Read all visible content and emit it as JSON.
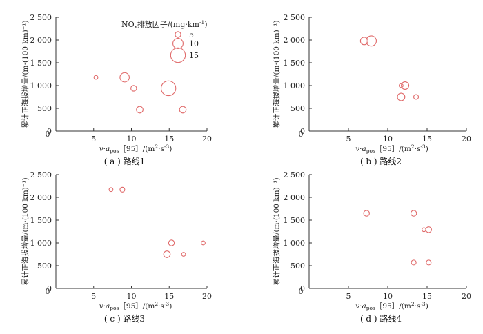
{
  "colors": {
    "marker": "#e06a6a",
    "axis": "#333333"
  },
  "legend": {
    "title": "NOx排放因子/(mg·km⁻¹)",
    "items": [
      {
        "label": "5",
        "size": 5
      },
      {
        "label": "10",
        "size": 10
      },
      {
        "label": "15",
        "size": 15
      }
    ]
  },
  "chart_data": [
    {
      "type": "scatter",
      "caption": "( a ) 路线1",
      "xlabel": "v·a_pos［95］/(m²·s⁻³)",
      "ylabel": "累计正海拔增量/(m·(100 km)⁻¹)",
      "xlim": [
        0,
        20
      ],
      "ylim": [
        0,
        2500
      ],
      "xticks": [
        0,
        5,
        10,
        15,
        20
      ],
      "yticks": [
        0,
        500,
        1000,
        1500,
        2000,
        2500
      ],
      "legend_position": "top-right",
      "points": [
        {
          "x": 5.3,
          "y": 1180,
          "size": 3
        },
        {
          "x": 9.1,
          "y": 1180,
          "size": 9
        },
        {
          "x": 10.3,
          "y": 940,
          "size": 5
        },
        {
          "x": 11.1,
          "y": 470,
          "size": 6
        },
        {
          "x": 14.9,
          "y": 940,
          "size": 15
        },
        {
          "x": 16.8,
          "y": 470,
          "size": 6
        }
      ]
    },
    {
      "type": "scatter",
      "caption": "( b ) 路线2",
      "xlabel": "v·a_pos［95］/(m²·s⁻³)",
      "ylabel": "累计正海拔增量/(m·(100 km)⁻¹)",
      "xlim": [
        0,
        20
      ],
      "ylim": [
        0,
        2500
      ],
      "xticks": [
        0,
        5,
        10,
        15,
        20
      ],
      "yticks": [
        0,
        500,
        1000,
        1500,
        2000,
        2500
      ],
      "points": [
        {
          "x": 7.0,
          "y": 1980,
          "size": 7
        },
        {
          "x": 7.9,
          "y": 1980,
          "size": 10
        },
        {
          "x": 11.7,
          "y": 1000,
          "size": 3
        },
        {
          "x": 12.2,
          "y": 1000,
          "size": 7
        },
        {
          "x": 11.7,
          "y": 750,
          "size": 7
        },
        {
          "x": 13.6,
          "y": 750,
          "size": 4
        }
      ]
    },
    {
      "type": "scatter",
      "caption": "( c ) 路线3",
      "xlabel": "v·a_pos［95］/(m²·s⁻³)",
      "ylabel": "累计正海拔增量/(m·(100 km)⁻¹)",
      "xlim": [
        0,
        20
      ],
      "ylim": [
        0,
        2500
      ],
      "xticks": [
        0,
        5,
        10,
        15,
        20
      ],
      "yticks": [
        0,
        500,
        1000,
        1500,
        2000,
        2500
      ],
      "points": [
        {
          "x": 7.3,
          "y": 2170,
          "size": 3
        },
        {
          "x": 8.8,
          "y": 2170,
          "size": 4
        },
        {
          "x": 15.3,
          "y": 1000,
          "size": 5
        },
        {
          "x": 14.7,
          "y": 750,
          "size": 6
        },
        {
          "x": 16.9,
          "y": 750,
          "size": 3
        },
        {
          "x": 19.5,
          "y": 1000,
          "size": 3
        }
      ]
    },
    {
      "type": "scatter",
      "caption": "( d ) 路线4",
      "xlabel": "v·a_pos［95］/(m²·s⁻³)",
      "ylabel": "累计正海拔增量/(m·(100 km)⁻¹)",
      "xlim": [
        0,
        20
      ],
      "ylim": [
        0,
        2500
      ],
      "xticks": [
        0,
        5,
        10,
        15,
        20
      ],
      "yticks": [
        0,
        500,
        1000,
        1500,
        2000,
        2500
      ],
      "points": [
        {
          "x": 7.3,
          "y": 1650,
          "size": 5
        },
        {
          "x": 13.3,
          "y": 1650,
          "size": 5
        },
        {
          "x": 14.6,
          "y": 1290,
          "size": 3
        },
        {
          "x": 15.2,
          "y": 1290,
          "size": 5
        },
        {
          "x": 13.3,
          "y": 570,
          "size": 4
        },
        {
          "x": 15.2,
          "y": 570,
          "size": 4
        }
      ]
    }
  ]
}
